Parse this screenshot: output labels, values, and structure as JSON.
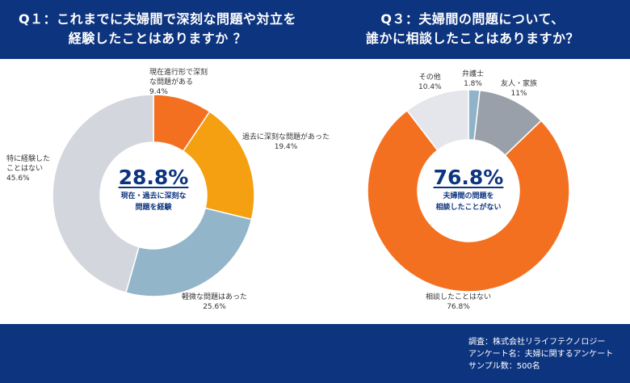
{
  "footer": {
    "line1": "調査：株式会社リライフテクノロジー",
    "line2": "アンケート名：夫婦に関するアンケート",
    "line3": "サンプル数：500名"
  },
  "chart_data": [
    {
      "type": "pie",
      "title_line1": "Q１：これまでに夫婦間で深刻な問題や対立を",
      "title_line2": "経験したことはありますか ？",
      "center_value": "28.8%",
      "center_label_line1": "現在・過去に深刻な",
      "center_label_line2": "問題を経験",
      "slices": [
        {
          "label_line1": "現在進行形で深刻",
          "label_line2": "な問題がある",
          "value": 9.4,
          "display": "9.4%",
          "color": "#f37021"
        },
        {
          "label_line1": "過去に深刻な問題があった",
          "label_line2": "",
          "value": 19.4,
          "display": "19.4%",
          "color": "#f5a010"
        },
        {
          "label_line1": "軽微な問題はあった",
          "label_line2": "",
          "value": 25.6,
          "display": "25.6%",
          "color": "#93b5c9"
        },
        {
          "label_line1": "特に経験した",
          "label_line2": "ことはない",
          "value": 45.6,
          "display": "45.6%",
          "color": "#d3d6dd"
        }
      ]
    },
    {
      "type": "pie",
      "title_line1": "Q３：夫婦間の問題について、",
      "title_line2": "誰かに相談したことはありますか？",
      "center_value": "76.8%",
      "center_label_line1": "夫婦間の問題を",
      "center_label_line2": "相談したことがない",
      "slices": [
        {
          "label_line1": "弁護士",
          "label_line2": "",
          "value": 1.8,
          "display": "1.8%",
          "color": "#8fb3c8"
        },
        {
          "label_line1": "友人・家族",
          "label_line2": "",
          "value": 11,
          "display": "11%",
          "color": "#9aa0aa"
        },
        {
          "label_line1": "相談したことはない",
          "label_line2": "",
          "value": 76.8,
          "display": "76.8%",
          "color": "#f37021"
        },
        {
          "label_line1": "その他",
          "label_line2": "",
          "value": 10.4,
          "display": "10.4%",
          "color": "#e4e6eb"
        }
      ]
    }
  ]
}
